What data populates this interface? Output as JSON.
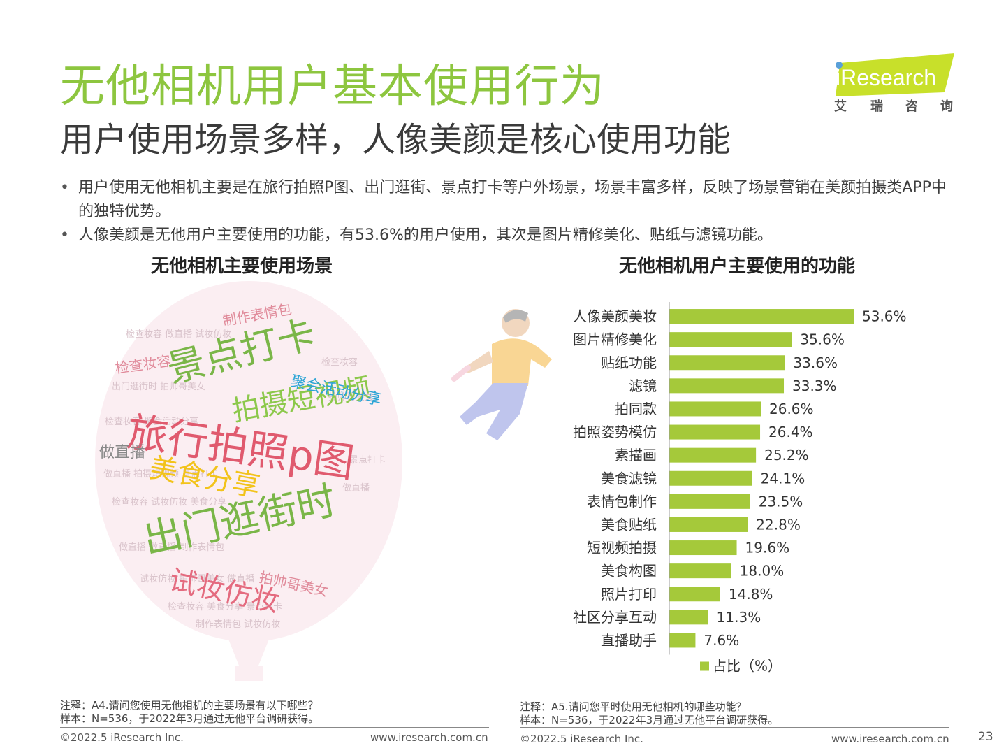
{
  "header": {
    "title": "无他相机用户基本使用行为",
    "subtitle": "用户使用场景多样，人像美颜是核心使用功能",
    "logo_text": "iResearch",
    "logo_cn": [
      "艾",
      "瑞",
      "咨",
      "询"
    ]
  },
  "bullets": [
    "用户使用无他相机主要是在旅行拍照P图、出门逛街、景点打卡等户外场景，场景丰富多样，反映了场景营销在美颜拍摄类APP中的独特优势。",
    "人像美颜是无他用户主要使用的功能，有53.6%的用户使用，其次是图片精修美化、贴纸与滤镜功能。"
  ],
  "left_panel": {
    "title": "无他相机主要使用场景",
    "words": [
      {
        "text": "旅行拍照p图",
        "color": "#e05a6e"
      },
      {
        "text": "出门逛街时",
        "color": "#7ab648"
      },
      {
        "text": "景点打卡",
        "color": "#7ab648"
      },
      {
        "text": "拍摄短视频",
        "color": "#8cc84b"
      },
      {
        "text": "美食分享",
        "color": "#f2c31b"
      },
      {
        "text": "试妆仿妆",
        "color": "#e46b7f"
      },
      {
        "text": "聚会活动分享",
        "color": "#2aa4d5"
      },
      {
        "text": "做直播",
        "color": "#888888"
      },
      {
        "text": "检查妆容",
        "color": "#e08a9a"
      },
      {
        "text": "制作表情包",
        "color": "#e08a9a"
      },
      {
        "text": "拍帅哥美女",
        "color": "#e08a9a"
      }
    ],
    "note_question": "注释：A4.请问您使用无他相机的主要场景有以下哪些？",
    "note_sample": "样本：N=536，于2022年3月通过无他平台调研获得。",
    "copyright": "©2022.5 iResearch Inc.",
    "site": "www.iresearch.com.cn"
  },
  "right_panel": {
    "title": "无他相机用户主要使用的功能",
    "note_question": "注释：A5.请问您平时使用无他相机的哪些功能？",
    "note_sample": "样本：N=536，于2022年3月通过无他平台调研获得。",
    "copyright": "©2022.5 iResearch Inc.",
    "site": "www.iresearch.com.cn",
    "page_number": "23"
  },
  "colors": {
    "accent": "#8dc63f",
    "bar": "#a5c93a"
  },
  "chart_data": {
    "type": "bar",
    "orientation": "horizontal",
    "title": "无他相机用户主要使用的功能",
    "categories": [
      "人像美颜美妆",
      "图片精修美化",
      "贴纸功能",
      "滤镜",
      "拍同款",
      "拍照姿势模仿",
      "素描画",
      "美食滤镜",
      "表情包制作",
      "美食贴纸",
      "短视频拍摄",
      "美食构图",
      "照片打印",
      "社区分享互动",
      "直播助手"
    ],
    "series": [
      {
        "name": "占比（%）",
        "values": [
          53.6,
          35.6,
          33.6,
          33.3,
          26.6,
          26.4,
          25.2,
          24.1,
          23.5,
          22.8,
          19.6,
          18.0,
          14.8,
          11.3,
          7.6
        ]
      }
    ],
    "value_labels": [
      "53.6%",
      "35.6%",
      "33.6%",
      "33.3%",
      "26.6%",
      "26.4%",
      "25.2%",
      "24.1%",
      "23.5%",
      "22.8%",
      "19.6%",
      "18.0%",
      "14.8%",
      "11.3%",
      "7.6%"
    ],
    "xlim": [
      0,
      60
    ],
    "grid": false,
    "legend": "bottom"
  }
}
